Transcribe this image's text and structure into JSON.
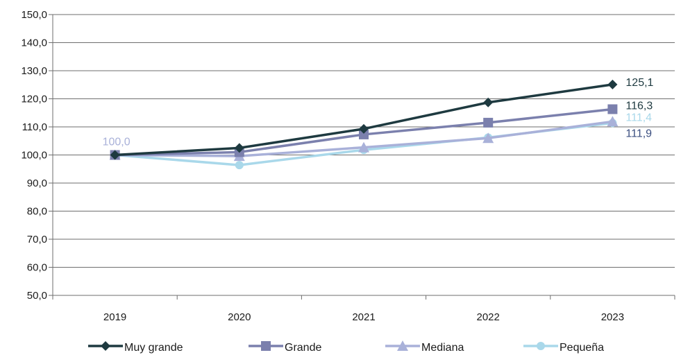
{
  "chart_data": {
    "type": "line",
    "categories": [
      "2019",
      "2020",
      "2021",
      "2022",
      "2023"
    ],
    "ylim": [
      50,
      150
    ],
    "yticks": [
      "50,0",
      "60,0",
      "70,0",
      "80,0",
      "90,0",
      "100,0",
      "110,0",
      "120,0",
      "130,0",
      "140,0",
      "150,0"
    ],
    "grid": true,
    "legend_position": "bottom",
    "series": [
      {
        "name": "Muy grande",
        "values": [
          100.0,
          102.5,
          109.3,
          118.7,
          125.1
        ],
        "color": "#1e3a40",
        "marker": "diamond"
      },
      {
        "name": "Grande",
        "values": [
          100.0,
          101.0,
          107.3,
          111.5,
          116.3
        ],
        "color": "#7b80ad",
        "marker": "square"
      },
      {
        "name": "Mediana",
        "values": [
          100.0,
          99.6,
          102.7,
          106.0,
          111.9
        ],
        "color": "#a9b1d9",
        "marker": "triangle"
      },
      {
        "name": "Pequeña",
        "values": [
          100.0,
          96.4,
          101.8,
          106.2,
          111.4
        ],
        "color": "#a9d8ea",
        "marker": "circle"
      }
    ],
    "annotations": [
      {
        "text": "100,0",
        "category": "2019",
        "value": 100.0,
        "color": "#a9b1d9"
      },
      {
        "text": "125,1",
        "category": "2023",
        "value": 125.1,
        "color": "#1e3a40"
      },
      {
        "text": "116,3",
        "category": "2023",
        "value": 116.3,
        "color": "#1e3a40"
      },
      {
        "text": "111,4",
        "category": "2023",
        "value": 111.4,
        "color": "#a9d8ea"
      },
      {
        "text": "111,9",
        "category": "2023",
        "value": 111.9,
        "color": "#3b4f80"
      }
    ]
  }
}
